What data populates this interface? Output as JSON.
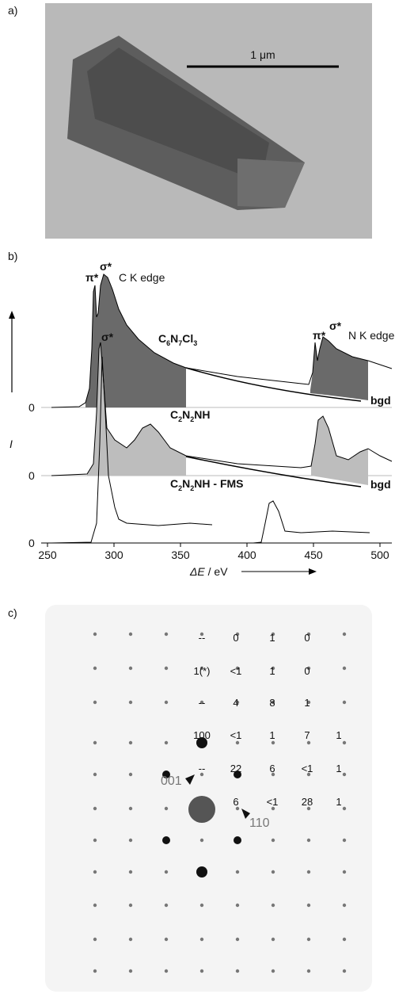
{
  "panel_a": {
    "label": "a)",
    "scale_bar": "1 μm"
  },
  "panel_b": {
    "label": "b)",
    "y_axis_label": "I",
    "x_axis_label": {
      "symbol": "ΔE",
      "unit": " / eV"
    },
    "xticks": [
      250,
      300,
      350,
      400,
      450,
      500
    ],
    "zero_labels": [
      0,
      0,
      0
    ],
    "annotations": {
      "c_pi": "π*",
      "c_sigma": "σ*",
      "c_edge": "C K edge",
      "c2_sigma": "σ*",
      "n_pi": "π*",
      "n_sigma": "σ*",
      "n_edge": "N K edge",
      "bgd_1": "bgd",
      "bgd_2": "bgd"
    },
    "spectra": [
      [
        "C",
        "6",
        "N",
        "7",
        "Cl",
        "3"
      ],
      [
        "C",
        "2",
        "N",
        "2",
        "NH"
      ],
      [
        "C",
        "2",
        "N",
        "2",
        "NH - FMS"
      ]
    ]
  },
  "panel_c": {
    "label": "c)",
    "intensities": [
      [
        "--",
        "0",
        "1",
        "0"
      ],
      [
        "1(*)",
        "<1",
        "1",
        "0"
      ],
      [
        "--",
        "4",
        "8",
        "1"
      ],
      [
        "100",
        "<1",
        "1",
        "7",
        "1"
      ],
      [
        "--",
        "22",
        "6",
        "<1",
        "1"
      ],
      [
        "6",
        "<1",
        "28",
        "1"
      ]
    ],
    "index_001": "001",
    "index_110": "110"
  }
}
